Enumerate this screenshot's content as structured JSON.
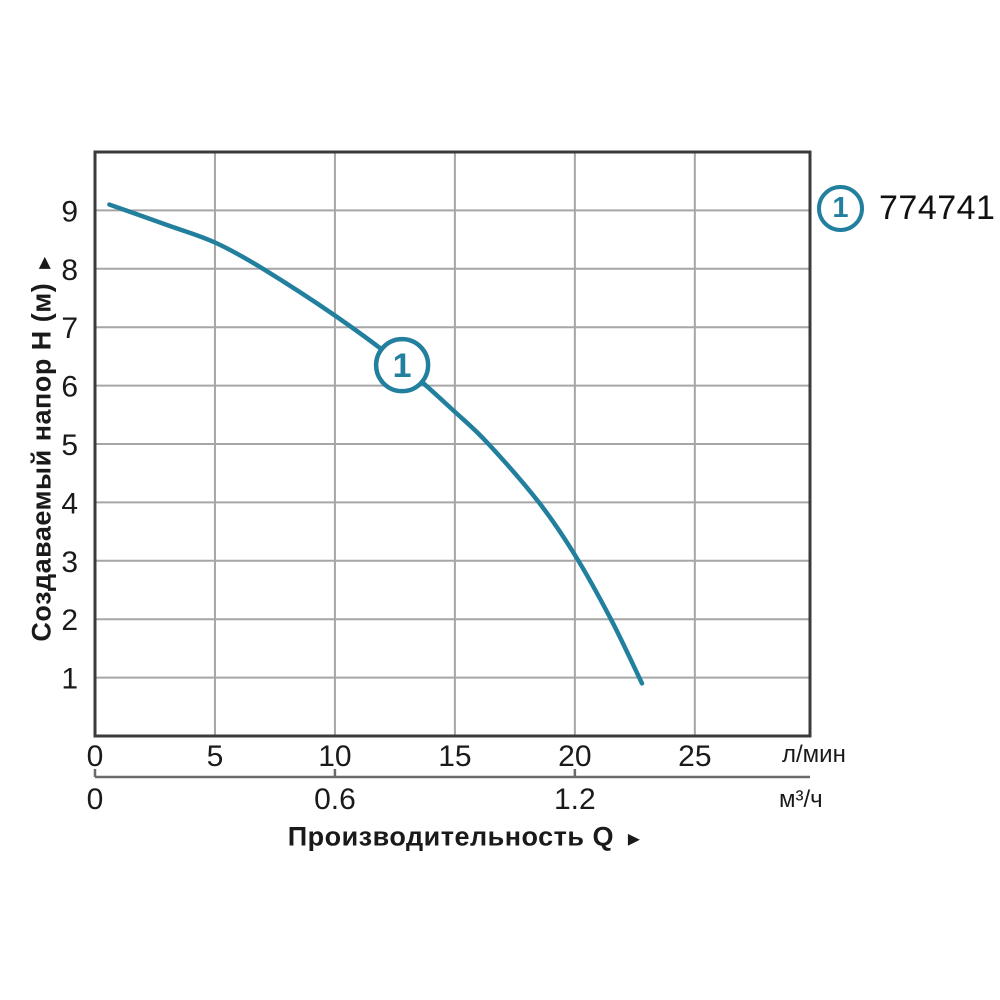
{
  "colors": {
    "curve": "#227f9e",
    "grid": "#a6a6a6",
    "frame": "#3b3b3b",
    "secondary_axis": "#6b6b6b",
    "text": "#1a1a1a",
    "background": "#ffffff"
  },
  "icons": {
    "x_axis_arrow": "►",
    "y_axis_arrow": "►"
  },
  "legend": {
    "series_number": "1",
    "product_code": "774741"
  },
  "chart_data": {
    "type": "line",
    "title": "",
    "xlabel": "Производительность Q",
    "ylabel": "Создаваемый напор Н (м)",
    "xlim": [
      0,
      29.8
    ],
    "ylim": [
      0,
      10
    ],
    "grid": true,
    "legend_position": "top-right",
    "x_axis_primary": {
      "unit": "л/мин",
      "ticks": [
        0,
        5,
        10,
        15,
        20,
        25
      ]
    },
    "x_axis_secondary": {
      "unit": "м³/ч",
      "tick_labels": [
        "0",
        "0.6",
        "1.2"
      ],
      "tick_values_m3h": [
        0,
        0.6,
        1.2
      ],
      "lmin_per_m3h": 16.6667
    },
    "yticks": [
      1,
      2,
      3,
      4,
      5,
      6,
      7,
      8,
      9
    ],
    "series": [
      {
        "name": "1",
        "code": "774741",
        "x_unit": "л/мин",
        "y_unit": "м",
        "points": [
          [
            0.6,
            9.1
          ],
          [
            3,
            8.75
          ],
          [
            5,
            8.45
          ],
          [
            7,
            8.0
          ],
          [
            10,
            7.2
          ],
          [
            12.8,
            6.35
          ],
          [
            15,
            5.55
          ],
          [
            16.4,
            5.0
          ],
          [
            18.5,
            4.0
          ],
          [
            20,
            3.1
          ],
          [
            21.5,
            2.0
          ],
          [
            22.8,
            0.9
          ]
        ],
        "marker": {
          "label": "1",
          "x": 12.8,
          "y": 6.35
        }
      }
    ]
  }
}
